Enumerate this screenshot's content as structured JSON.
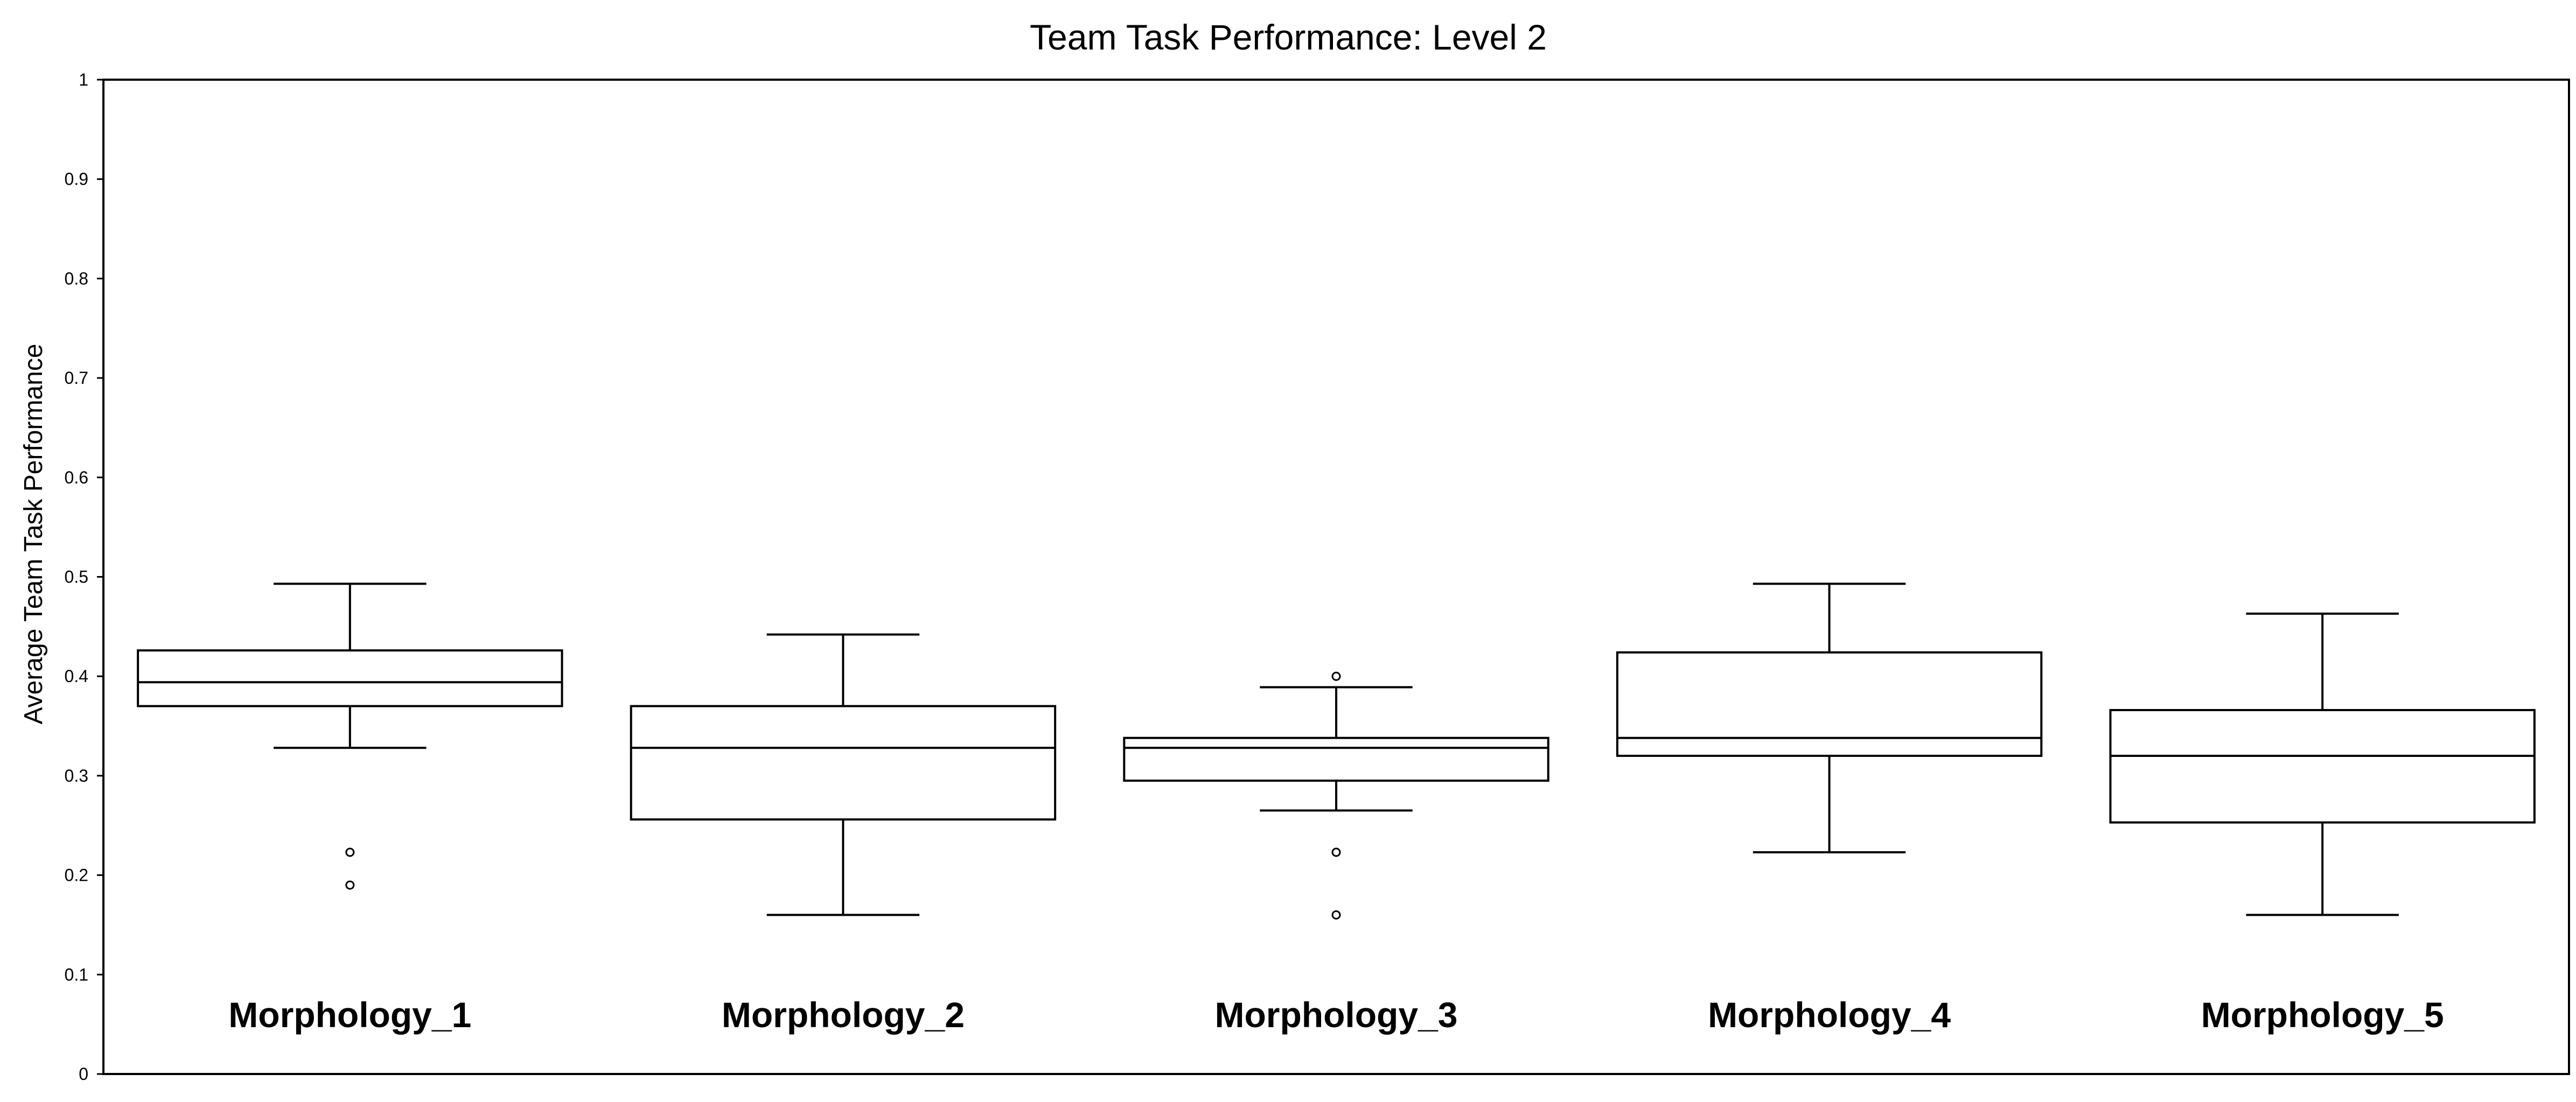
{
  "chart_data": {
    "type": "box",
    "title": "Team Task Performance: Level 2",
    "xlabel": "",
    "ylabel": "Average Team Task Performance",
    "ylim": [
      0,
      1
    ],
    "yticks": [
      "0",
      "0.1",
      "0.2",
      "0.3",
      "0.4",
      "0.5",
      "0.6",
      "0.7",
      "0.8",
      "0.9",
      "1"
    ],
    "grid": false,
    "legend": "none",
    "categories": [
      "Morphology_1",
      "Morphology_2",
      "Morphology_3",
      "Morphology_4",
      "Morphology_5"
    ],
    "boxes": [
      {
        "category": "Morphology_1",
        "whisker_low": 0.328,
        "q1": 0.37,
        "median": 0.394,
        "q3": 0.426,
        "whisker_high": 0.493,
        "outliers": [
          0.223,
          0.19
        ]
      },
      {
        "category": "Morphology_2",
        "whisker_low": 0.16,
        "q1": 0.256,
        "median": 0.328,
        "q3": 0.37,
        "whisker_high": 0.442,
        "outliers": []
      },
      {
        "category": "Morphology_3",
        "whisker_low": 0.265,
        "q1": 0.295,
        "median": 0.328,
        "q3": 0.338,
        "whisker_high": 0.389,
        "outliers": [
          0.4,
          0.223,
          0.16
        ]
      },
      {
        "category": "Morphology_4",
        "whisker_low": 0.223,
        "q1": 0.32,
        "median": 0.338,
        "q3": 0.424,
        "whisker_high": 0.493,
        "outliers": []
      },
      {
        "category": "Morphology_5",
        "whisker_low": 0.16,
        "q1": 0.253,
        "median": 0.32,
        "q3": 0.366,
        "whisker_high": 0.463,
        "outliers": []
      }
    ],
    "colors": {
      "stroke": "#000000",
      "background": "#ffffff"
    }
  }
}
